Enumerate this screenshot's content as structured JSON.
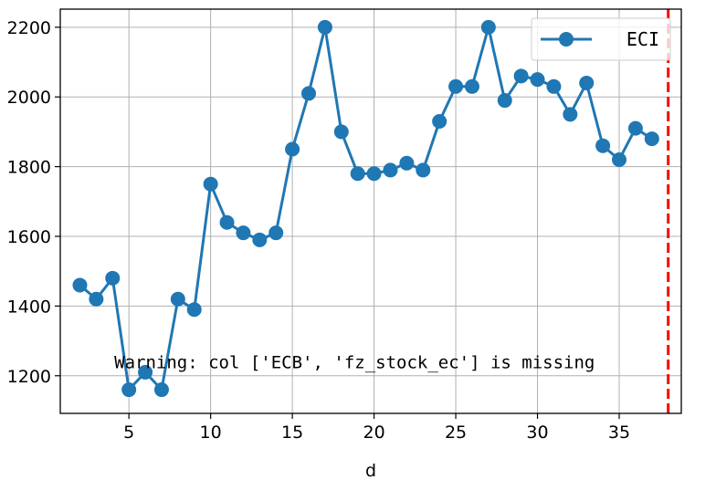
{
  "chart_data": {
    "type": "line",
    "xlabel": "d",
    "ylabel": "",
    "xlim": [
      0.8,
      38.8
    ],
    "ylim": [
      1092,
      2252
    ],
    "xticks": [
      5,
      10,
      15,
      20,
      25,
      30,
      35
    ],
    "yticks": [
      1200,
      1400,
      1600,
      1800,
      2000,
      2200
    ],
    "ytick_labels": [
      "1200",
      "1400",
      "1600",
      "1800",
      "2000",
      "2200"
    ],
    "grid": true,
    "legend_position": "top-right",
    "series": [
      {
        "name": "ECI",
        "color": "#1f77b4",
        "marker": "circle",
        "x": [
          2,
          3,
          4,
          5,
          6,
          7,
          8,
          9,
          10,
          11,
          12,
          13,
          14,
          15,
          16,
          17,
          18,
          19,
          20,
          21,
          22,
          23,
          24,
          25,
          26,
          27,
          28,
          29,
          30,
          31,
          32,
          33,
          34,
          35,
          36,
          37
        ],
        "y": [
          1460,
          1420,
          1480,
          1160,
          1210,
          1160,
          1420,
          1390,
          1750,
          1640,
          1610,
          1590,
          1610,
          1850,
          2010,
          2200,
          1900,
          1780,
          1780,
          1790,
          1810,
          1790,
          1930,
          2030,
          2030,
          2200,
          1990,
          2060,
          2050,
          2030,
          1950,
          2040,
          1860,
          1820,
          1910,
          1880
        ]
      }
    ],
    "vline": {
      "x": 38,
      "color": "#ff0000",
      "style": "dashed"
    },
    "annotation": {
      "text": "Warning: col ['ECB', 'fz_stock_ec'] is missing",
      "x": 5,
      "y": 1240
    }
  }
}
